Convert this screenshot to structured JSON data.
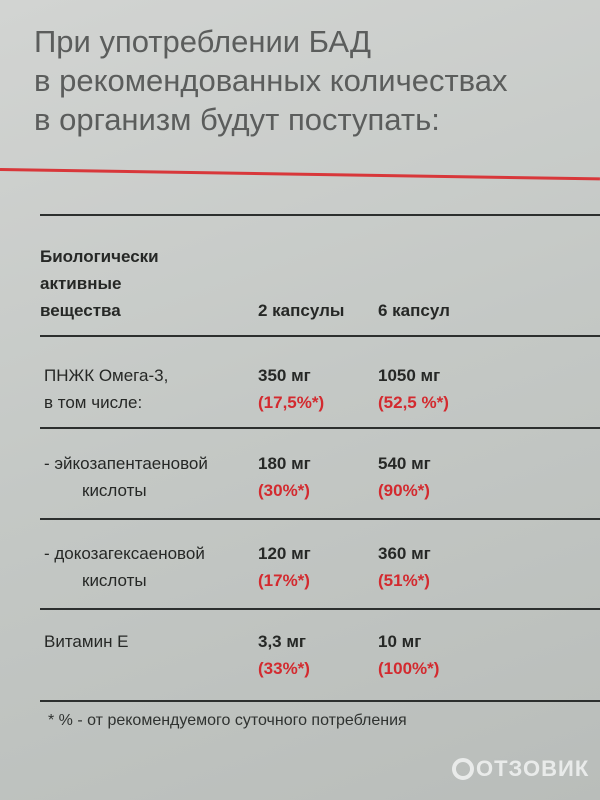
{
  "title": [
    "При употреблении БАД",
    "в рекомендованных количествах",
    "в организм будут поступать:"
  ],
  "header": {
    "col1": [
      "Биологически",
      "активные",
      "вещества"
    ],
    "col2": "2 капсулы",
    "col3": "6 капсул"
  },
  "rows": [
    {
      "name": [
        "ПНЖК Омега-3,",
        "в том числе:"
      ],
      "c2": "350 мг",
      "c2p": "(17,5%*)",
      "c3": "1050 мг",
      "c3p": "(52,5 %*)"
    },
    {
      "name": [
        "- эйкозапентаеновой",
        "кислоты"
      ],
      "c2": "180 мг",
      "c2p": "(30%*)",
      "c3": "540 мг",
      "c3p": "(90%*)"
    },
    {
      "name": [
        "- докозагексаеновой",
        "кислоты"
      ],
      "c2": "120 мг",
      "c2p": "(17%*)",
      "c3": "360 мг",
      "c3p": "(51%*)"
    },
    {
      "name": [
        "Витамин Е"
      ],
      "c2": "3,3 мг",
      "c2p": "(33%*)",
      "c3": "10 мг",
      "c3p": "(100%*)"
    }
  ],
  "footnote": "* % - от рекомендуемого суточного потребления",
  "watermark": "ОТЗОВИК",
  "colors": {
    "accent_red": "#d32a2f"
  }
}
